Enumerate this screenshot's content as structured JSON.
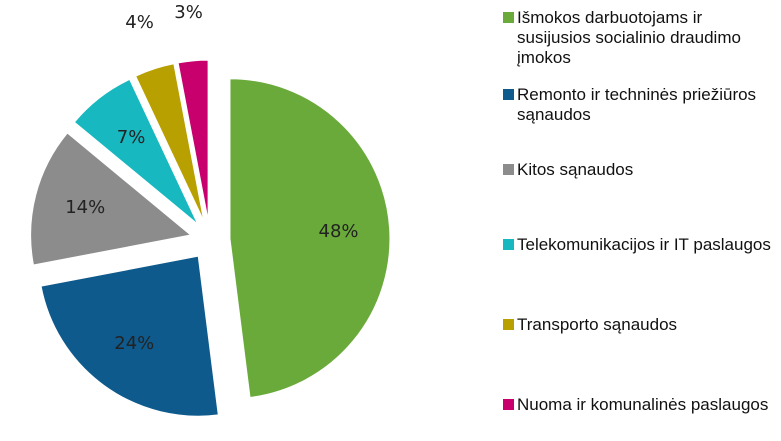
{
  "chart_data": {
    "type": "pie",
    "categories": [
      "Išmokos darbuotojams ir susijusios socialinio draudimo įmokos",
      "Remonto ir techninės priežiūros sąnaudos",
      "Kitos sąnaudos",
      "Telekomunikacijos ir IT paslaugos",
      "Transporto sąnaudos",
      "Nuoma ir komunalinės paslaugos"
    ],
    "values": [
      48,
      24,
      14,
      7,
      4,
      3
    ],
    "value_labels": [
      "48%",
      "24%",
      "14%",
      "7%",
      "4%",
      "3%"
    ],
    "colors": [
      "#6aaa3a",
      "#0f5a8c",
      "#8c8c8c",
      "#17b8c0",
      "#b8a000",
      "#c8006e"
    ],
    "legend": "right"
  }
}
